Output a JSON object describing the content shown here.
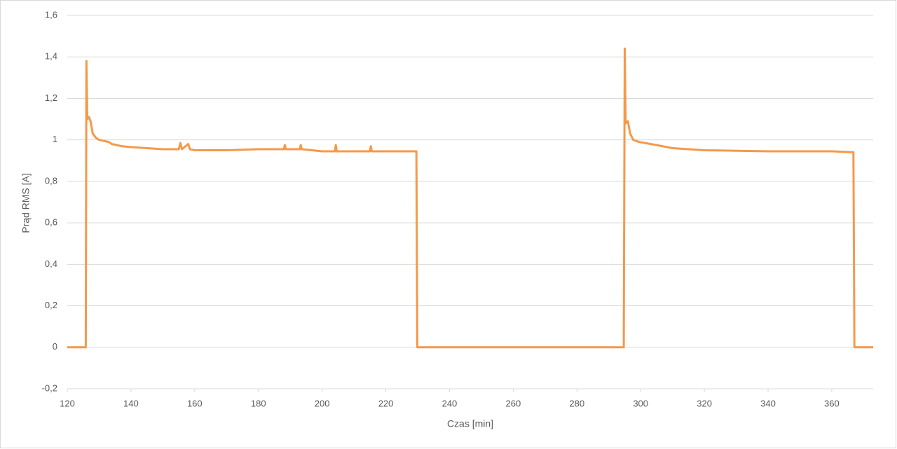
{
  "chart_data": {
    "type": "line",
    "x_label": "Czas [min]",
    "y_label": "Prąd RMS [A]",
    "xlim": [
      120,
      373
    ],
    "xticks": [
      120,
      140,
      160,
      180,
      200,
      220,
      240,
      260,
      280,
      300,
      320,
      340,
      360
    ],
    "ylim": [
      -0.2,
      1.6
    ],
    "yticks": [
      {
        "value": -0.2,
        "label": "-0,2"
      },
      0,
      {
        "value": 0.2,
        "label": "0,2"
      },
      {
        "value": 0.4,
        "label": "0,4"
      },
      {
        "value": 0.6,
        "label": "0,6"
      },
      {
        "value": 0.8,
        "label": "0,8"
      },
      1,
      {
        "value": 1.2,
        "label": "1,2"
      },
      {
        "value": 1.4,
        "label": "1,4"
      },
      {
        "value": 1.6,
        "label": "1,6"
      }
    ],
    "grid": true,
    "x": [
      120,
      125.8,
      126,
      126.3,
      126.8,
      127.3,
      128,
      129,
      130,
      133,
      134,
      137,
      140,
      145,
      150,
      155,
      155.5,
      156,
      158,
      158.5,
      160,
      170,
      180,
      188,
      188.3,
      188.6,
      193,
      193.3,
      193.6,
      200,
      204,
      204.3,
      204.6,
      215,
      215.3,
      215.6,
      229.6,
      229.9,
      250,
      294.7,
      295,
      295.3,
      296,
      296.7,
      297.7,
      299.5,
      305,
      310,
      320,
      340,
      350,
      360,
      366.8,
      367.1,
      373
    ],
    "series": [
      {
        "name": "Prąd RMS",
        "color": "#f4994a",
        "values": [
          0,
          0,
          1.38,
          1.1,
          1.11,
          1.09,
          1.03,
          1.01,
          1.0,
          0.99,
          0.98,
          0.97,
          0.965,
          0.96,
          0.955,
          0.955,
          0.985,
          0.955,
          0.98,
          0.955,
          0.95,
          0.95,
          0.955,
          0.955,
          0.975,
          0.955,
          0.955,
          0.975,
          0.955,
          0.945,
          0.945,
          0.975,
          0.945,
          0.945,
          0.97,
          0.945,
          0.945,
          0,
          0,
          0,
          1.44,
          1.08,
          1.09,
          1.03,
          1.0,
          0.99,
          0.975,
          0.96,
          0.95,
          0.945,
          0.945,
          0.945,
          0.94,
          0,
          0
        ]
      }
    ]
  }
}
